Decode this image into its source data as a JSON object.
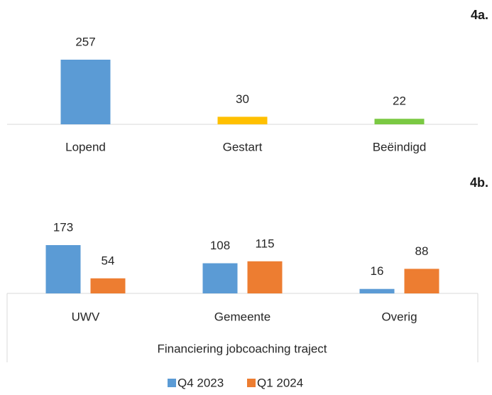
{
  "chart_data": [
    {
      "type": "bar",
      "title": "4a.",
      "categories": [
        "Lopend",
        "Gestart",
        "Beëindigd"
      ],
      "values": [
        257,
        30,
        22
      ],
      "colors": [
        "#5b9bd5",
        "#ffc000",
        "#7ac943"
      ]
    },
    {
      "type": "grouped_bar",
      "title": "4b.",
      "categories": [
        "UWV",
        "Gemeente",
        "Overig"
      ],
      "x_label": "Financiering jobcoaching traject",
      "series": [
        {
          "name": "Q4 2023",
          "color": "#5b9bd5",
          "values": [
            173,
            108,
            16
          ]
        },
        {
          "name": "Q1 2024",
          "color": "#ed7d31",
          "values": [
            54,
            115,
            88
          ]
        }
      ],
      "legend": "bottom"
    }
  ]
}
